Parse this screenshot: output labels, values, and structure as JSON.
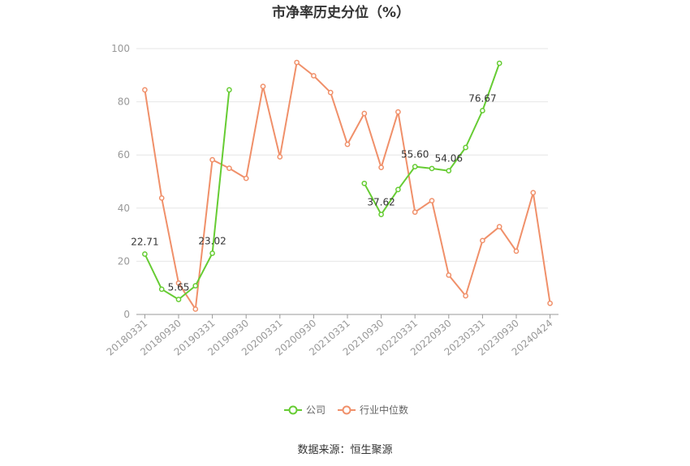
{
  "chart_data": {
    "type": "line",
    "title": "市净率历史分位（%）",
    "source": "数据来源：恒生聚源",
    "ylim": [
      0,
      100
    ],
    "yticks": [
      "0",
      "20",
      "40",
      "60",
      "80",
      "100"
    ],
    "x_tick_labels": [
      "20180331",
      "20180930",
      "20190331",
      "20190930",
      "20200331",
      "20200930",
      "20210331",
      "20210930",
      "20220331",
      "20220930",
      "20230331",
      "20230930",
      "20240424"
    ],
    "legend_position": "bottom",
    "grid": true,
    "series": [
      {
        "name": "公司",
        "color": "#66cc33",
        "values": [
          22.71,
          9.5,
          5.65,
          10.8,
          23.02,
          84.5,
          null,
          null,
          null,
          null,
          null,
          null,
          null,
          49.3,
          37.62,
          47.0,
          55.6,
          54.9,
          54.06,
          62.8,
          76.67,
          94.5,
          null,
          null,
          null
        ]
      },
      {
        "name": "行业中位数",
        "color": "#f0906a",
        "values": [
          84.5,
          43.8,
          11.8,
          2.0,
          58.2,
          55.0,
          51.2,
          85.8,
          59.3,
          94.8,
          89.8,
          83.5,
          64.0,
          75.6,
          55.3,
          76.2,
          38.5,
          42.8,
          14.8,
          7.0,
          27.8,
          33.0,
          23.8,
          45.8,
          4.2
        ]
      }
    ],
    "data_labels": [
      {
        "series": 0,
        "index": 0,
        "text": "22.71"
      },
      {
        "series": 0,
        "index": 2,
        "text": "5.65"
      },
      {
        "series": 0,
        "index": 4,
        "text": "23.02"
      },
      {
        "series": 0,
        "index": 14,
        "text": "37.62"
      },
      {
        "series": 0,
        "index": 16,
        "text": "55.60"
      },
      {
        "series": 0,
        "index": 18,
        "text": "54.06"
      },
      {
        "series": 0,
        "index": 20,
        "text": "76.67"
      }
    ]
  }
}
